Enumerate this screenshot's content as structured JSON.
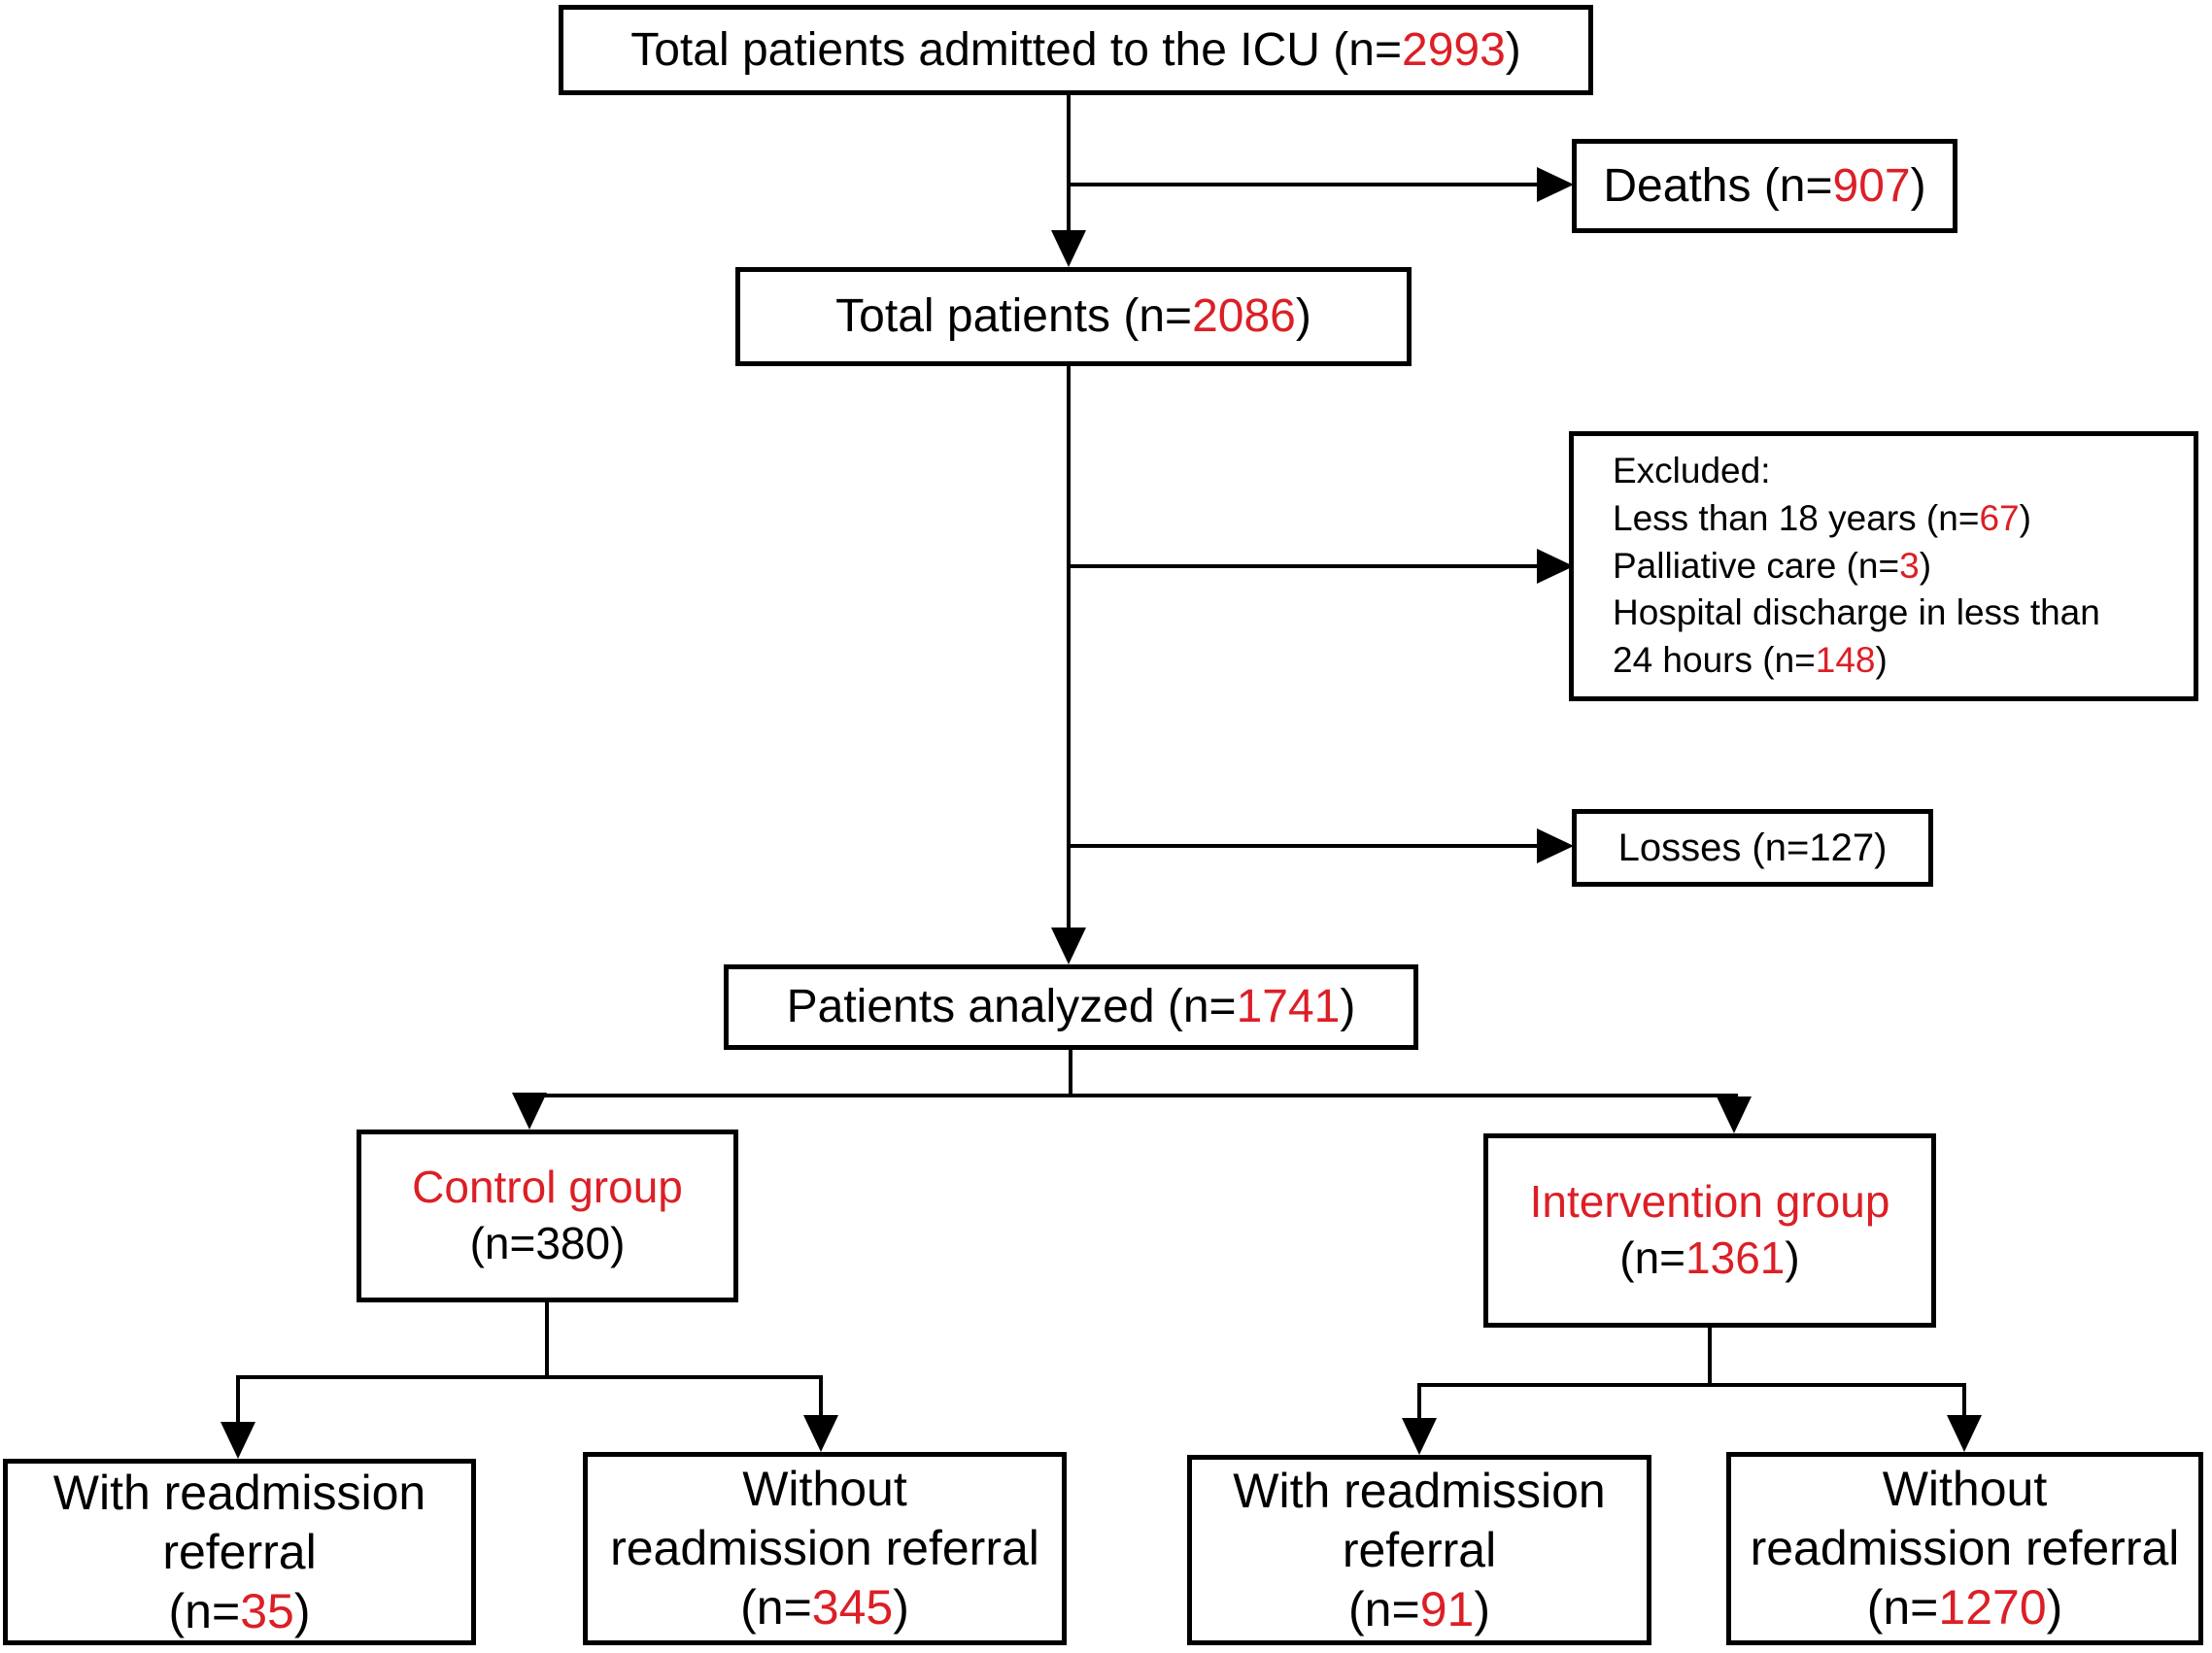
{
  "figure": {
    "title": "Patient flow diagram (ICU admissions)",
    "colors": {
      "number_red": "#DC1F26",
      "text_black": "#000000",
      "line_black": "#000000",
      "background": "#FFFFFF"
    },
    "nodes": {
      "icu": {
        "lines": [
          [
            {
              "t": "Total patients admitted to the ICU (n="
            },
            {
              "t": "2993",
              "red": true
            },
            {
              "t": ")"
            }
          ]
        ]
      },
      "deaths": {
        "lines": [
          [
            {
              "t": "Deaths (n="
            },
            {
              "t": "907",
              "red": true
            },
            {
              "t": ")"
            }
          ]
        ]
      },
      "total": {
        "lines": [
          [
            {
              "t": "Total patients (n="
            },
            {
              "t": "2086",
              "red": true
            },
            {
              "t": ")"
            }
          ]
        ]
      },
      "excluded": {
        "lines": [
          [
            {
              "t": "Excluded:"
            }
          ],
          [
            {
              "t": "Less than 18 years (n="
            },
            {
              "t": "67",
              "red": true
            },
            {
              "t": ")"
            }
          ],
          [
            {
              "t": "Palliative care (n="
            },
            {
              "t": "3",
              "red": true
            },
            {
              "t": ")"
            }
          ],
          [
            {
              "t": "Hospital discharge in less than"
            }
          ],
          [
            {
              "t": "24 hours (n="
            },
            {
              "t": "148",
              "red": true
            },
            {
              "t": ")"
            }
          ]
        ]
      },
      "losses": {
        "lines": [
          [
            {
              "t": "Losses (n=127)"
            }
          ]
        ]
      },
      "analyzed": {
        "lines": [
          [
            {
              "t": "Patients analyzed (n="
            },
            {
              "t": "1741",
              "red": true
            },
            {
              "t": ")"
            }
          ]
        ]
      },
      "control": {
        "lines": [
          [
            {
              "t": "Control group",
              "red": true
            }
          ],
          [
            {
              "t": "(n=380)"
            }
          ]
        ]
      },
      "intervention": {
        "lines": [
          [
            {
              "t": "Intervention group",
              "red": true
            }
          ],
          [
            {
              "t": "(n="
            },
            {
              "t": "1361",
              "red": true
            },
            {
              "t": ")"
            }
          ]
        ]
      },
      "ctrl_with": {
        "lines": [
          [
            {
              "t": "With readmission"
            }
          ],
          [
            {
              "t": "referral"
            }
          ],
          [
            {
              "t": "(n="
            },
            {
              "t": "35",
              "red": true
            },
            {
              "t": ")"
            }
          ]
        ]
      },
      "ctrl_without": {
        "lines": [
          [
            {
              "t": "Without"
            }
          ],
          [
            {
              "t": "readmission referral"
            }
          ],
          [
            {
              "t": "(n="
            },
            {
              "t": "345",
              "red": true
            },
            {
              "t": ")"
            }
          ]
        ]
      },
      "int_with": {
        "lines": [
          [
            {
              "t": "With readmission"
            }
          ],
          [
            {
              "t": "referral"
            }
          ],
          [
            {
              "t": "(n="
            },
            {
              "t": "91",
              "red": true
            },
            {
              "t": ")"
            }
          ]
        ]
      },
      "int_without": {
        "lines": [
          [
            {
              "t": "Without"
            }
          ],
          [
            {
              "t": "readmission referral"
            }
          ],
          [
            {
              "t": "(n="
            },
            {
              "t": "1270",
              "red": true
            },
            {
              "t": ")"
            }
          ]
        ]
      }
    }
  }
}
